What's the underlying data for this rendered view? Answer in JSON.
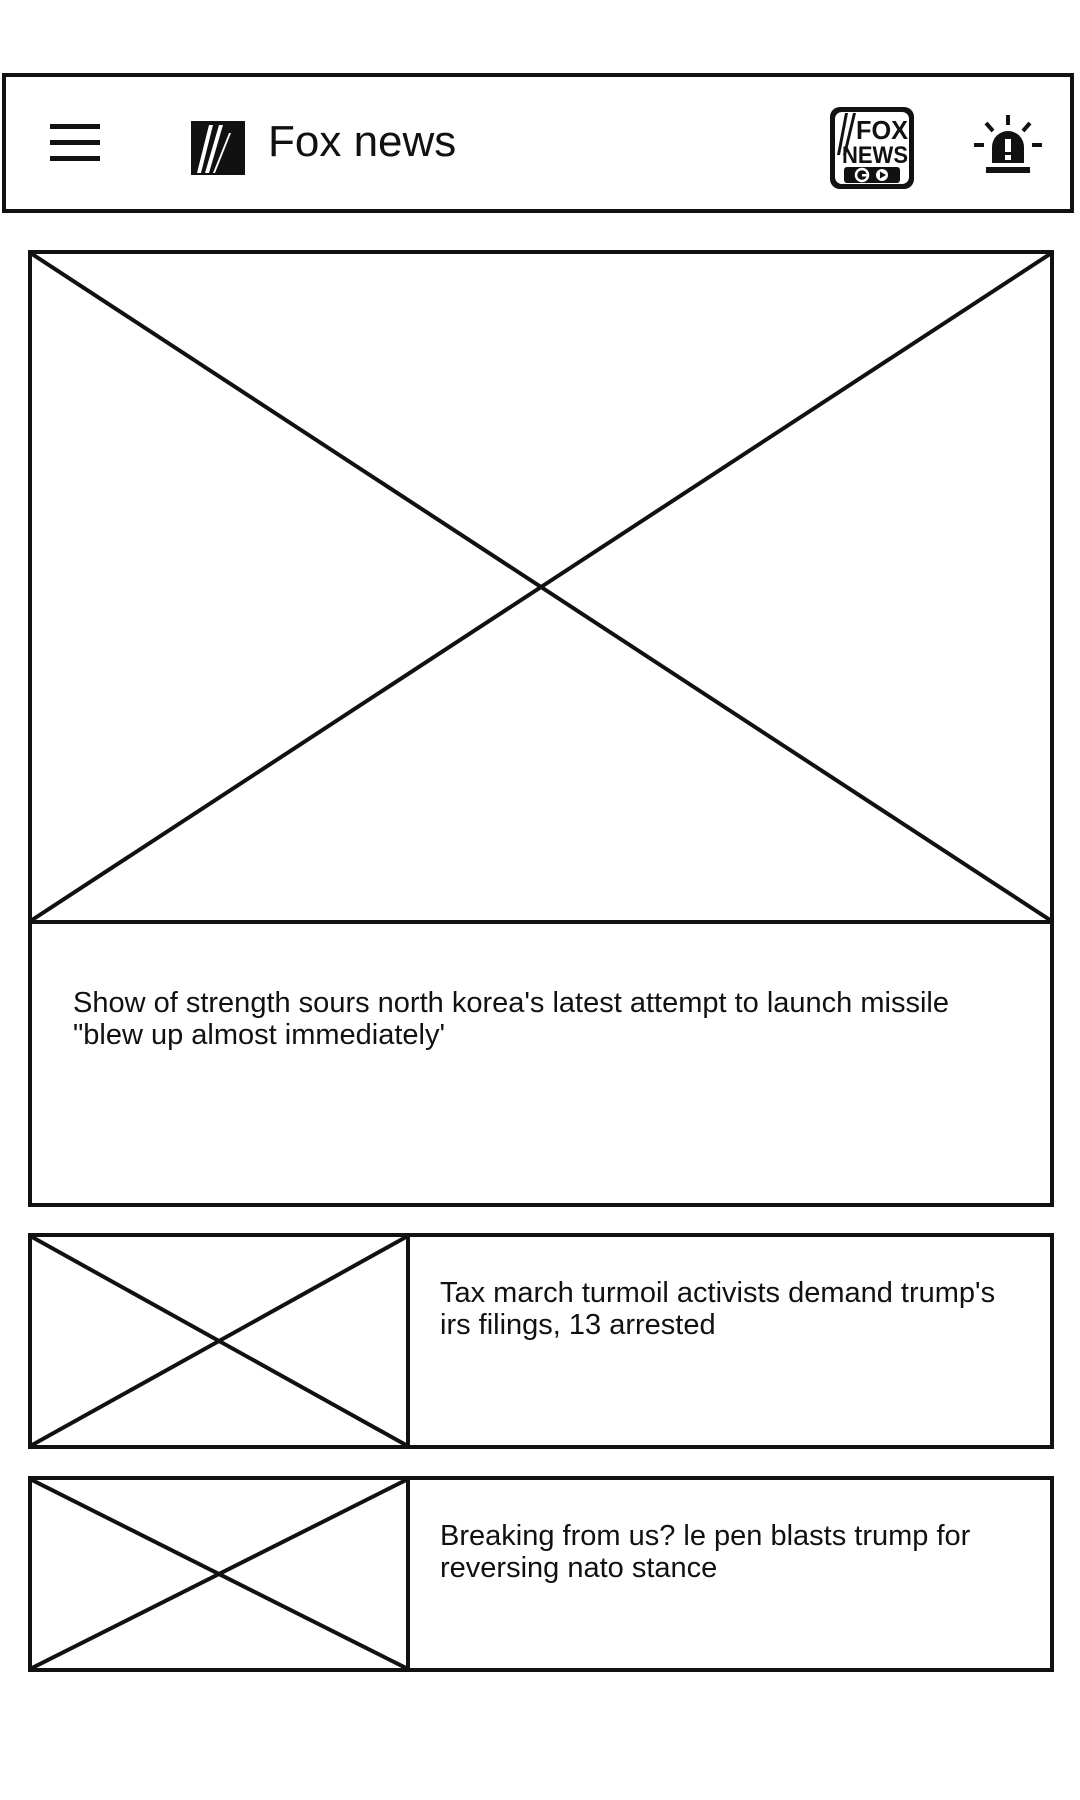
{
  "header": {
    "menu_icon": "hamburger-menu-icon",
    "brand_icon": "fox-news-logo-icon",
    "title": "Fox news",
    "app_logo_icon": "fox-news-go-logo",
    "alert_icon": "siren-alert-icon"
  },
  "articles": [
    {
      "image_icon": "image-placeholder-icon",
      "headline": "Show of strength sours north korea's latest attempt to launch missile \"blew up almost immediately'"
    },
    {
      "image_icon": "image-placeholder-icon",
      "headline": "Tax march turmoil activists demand trump's irs filings, 13 arrested"
    },
    {
      "image_icon": "image-placeholder-icon",
      "headline": "Breaking from us? le pen blasts trump for reversing nato stance"
    }
  ]
}
